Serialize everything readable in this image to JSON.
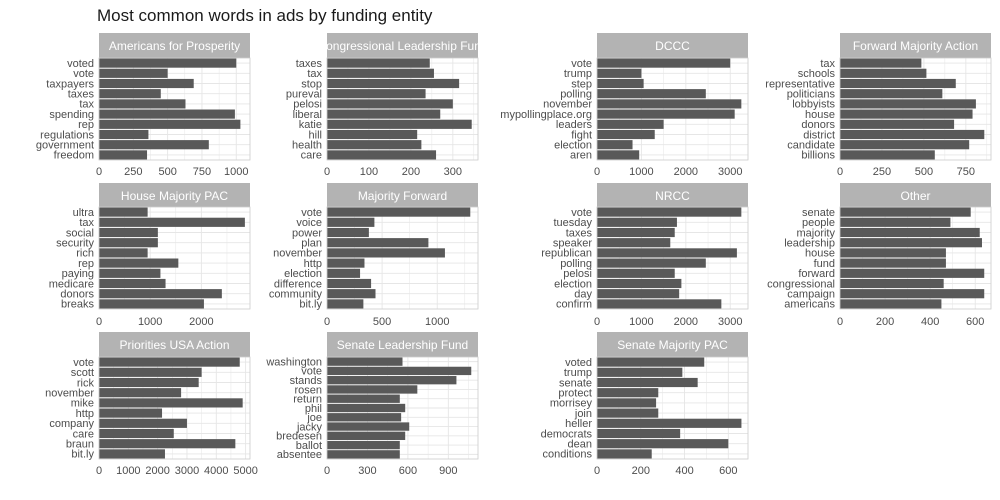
{
  "title": "Most common words in ads by funding entity",
  "colors": {
    "bar": "#595959",
    "strip": "#b3b3b3",
    "strip_text": "#ffffff",
    "grid": "#e6e6e6",
    "border": "#cccccc"
  },
  "chart_data": [
    {
      "type": "bar",
      "orientation": "horizontal",
      "panel": "Americans for Prosperity",
      "categories": [
        "voted",
        "vote",
        "taxpayers",
        "taxes",
        "tax",
        "spending",
        "rep",
        "regulations",
        "government",
        "freedom"
      ],
      "values": [
        1000,
        500,
        690,
        450,
        630,
        990,
        1030,
        360,
        800,
        350
      ],
      "xlim": [
        0,
        1100
      ],
      "xticks": [
        0,
        250,
        500,
        750,
        1000
      ]
    },
    {
      "type": "bar",
      "orientation": "horizontal",
      "panel": "Congressional Leadership Fund",
      "categories": [
        "taxes",
        "tax",
        "stop",
        "pureval",
        "pelosi",
        "liberal",
        "katie",
        "hill",
        "health",
        "care"
      ],
      "values": [
        245,
        255,
        315,
        235,
        300,
        270,
        345,
        215,
        225,
        260
      ],
      "xlim": [
        0,
        360
      ],
      "xticks": [
        0,
        100,
        200,
        300
      ]
    },
    {
      "type": "bar",
      "orientation": "horizontal",
      "panel": "DCCC",
      "categories": [
        "vote",
        "trump",
        "step",
        "polling",
        "november",
        "mypollingplace.org",
        "leaders",
        "fight",
        "election",
        "aren"
      ],
      "values": [
        3000,
        1000,
        1050,
        2450,
        3250,
        3100,
        1500,
        1300,
        800,
        950
      ],
      "xlim": [
        0,
        3400
      ],
      "xticks": [
        0,
        1000,
        2000,
        3000
      ]
    },
    {
      "type": "bar",
      "orientation": "horizontal",
      "panel": "Forward Majority Action",
      "categories": [
        "tax",
        "schools",
        "representative",
        "politicians",
        "lobbyists",
        "house",
        "donors",
        "district",
        "candidate",
        "billions"
      ],
      "values": [
        485,
        515,
        690,
        610,
        810,
        790,
        680,
        860,
        770,
        565
      ],
      "xlim": [
        0,
        900
      ],
      "xticks": [
        0,
        250,
        500,
        750
      ]
    },
    {
      "type": "bar",
      "orientation": "horizontal",
      "panel": "House Majority PAC",
      "categories": [
        "ultra",
        "tax",
        "social",
        "security",
        "rich",
        "rep",
        "paying",
        "medicare",
        "donors",
        "breaks"
      ],
      "values": [
        950,
        2850,
        1150,
        1150,
        950,
        1550,
        1200,
        1300,
        2400,
        2050
      ],
      "xlim": [
        0,
        2950
      ],
      "xticks": [
        0,
        1000,
        2000
      ]
    },
    {
      "type": "bar",
      "orientation": "horizontal",
      "panel": "Majority Forward",
      "categories": [
        "vote",
        "voice",
        "power",
        "plan",
        "november",
        "http",
        "election",
        "difference",
        "community",
        "bit.ly"
      ],
      "values": [
        1300,
        430,
        380,
        920,
        1070,
        340,
        300,
        400,
        440,
        330
      ],
      "xlim": [
        0,
        1370
      ],
      "xticks": [
        0,
        500,
        1000
      ]
    },
    {
      "type": "bar",
      "orientation": "horizontal",
      "panel": "NRCC",
      "categories": [
        "vote",
        "tuesday",
        "taxes",
        "speaker",
        "republican",
        "polling",
        "pelosi",
        "election",
        "day",
        "confirm"
      ],
      "values": [
        3250,
        1800,
        1750,
        1650,
        3150,
        2450,
        1750,
        1900,
        1850,
        2800
      ],
      "xlim": [
        0,
        3400
      ],
      "xticks": [
        0,
        1000,
        2000,
        3000
      ]
    },
    {
      "type": "bar",
      "orientation": "horizontal",
      "panel": "Other",
      "categories": [
        "senate",
        "people",
        "majority",
        "leadership",
        "house",
        "fund",
        "forward",
        "congressional",
        "campaign",
        "americans"
      ],
      "values": [
        580,
        490,
        620,
        630,
        470,
        470,
        640,
        460,
        640,
        450
      ],
      "xlim": [
        0,
        670
      ],
      "xticks": [
        0,
        200,
        400,
        600
      ]
    },
    {
      "type": "bar",
      "orientation": "horizontal",
      "panel": "Priorities USA Action",
      "categories": [
        "vote",
        "scott",
        "rick",
        "november",
        "mike",
        "http",
        "company",
        "care",
        "braun",
        "bit.ly"
      ],
      "values": [
        4800,
        3500,
        3400,
        2800,
        4900,
        2150,
        3000,
        2550,
        4650,
        2250
      ],
      "xlim": [
        0,
        5150
      ],
      "xticks": [
        0,
        1000,
        2000,
        3000,
        4000,
        5000
      ]
    },
    {
      "type": "bar",
      "orientation": "horizontal",
      "panel": "Senate Leadership Fund",
      "categories": [
        "washington",
        "vote",
        "stands",
        "rosen",
        "return",
        "phil",
        "joe",
        "jacky",
        "bredesen",
        "ballot",
        "absentee"
      ],
      "values": [
        560,
        1070,
        960,
        670,
        540,
        580,
        550,
        610,
        580,
        540,
        540
      ],
      "xlim": [
        0,
        1120
      ],
      "xticks": [
        0,
        300,
        600,
        900
      ]
    },
    {
      "type": "bar",
      "orientation": "horizontal",
      "panel": "Senate Majority PAC",
      "categories": [
        "voted",
        "trump",
        "senate",
        "protect",
        "morrisey",
        "join",
        "heller",
        "democrats",
        "dean",
        "conditions"
      ],
      "values": [
        490,
        390,
        460,
        280,
        270,
        280,
        660,
        380,
        600,
        250
      ],
      "xlim": [
        0,
        690
      ],
      "xticks": [
        0,
        200,
        400,
        600
      ]
    }
  ]
}
